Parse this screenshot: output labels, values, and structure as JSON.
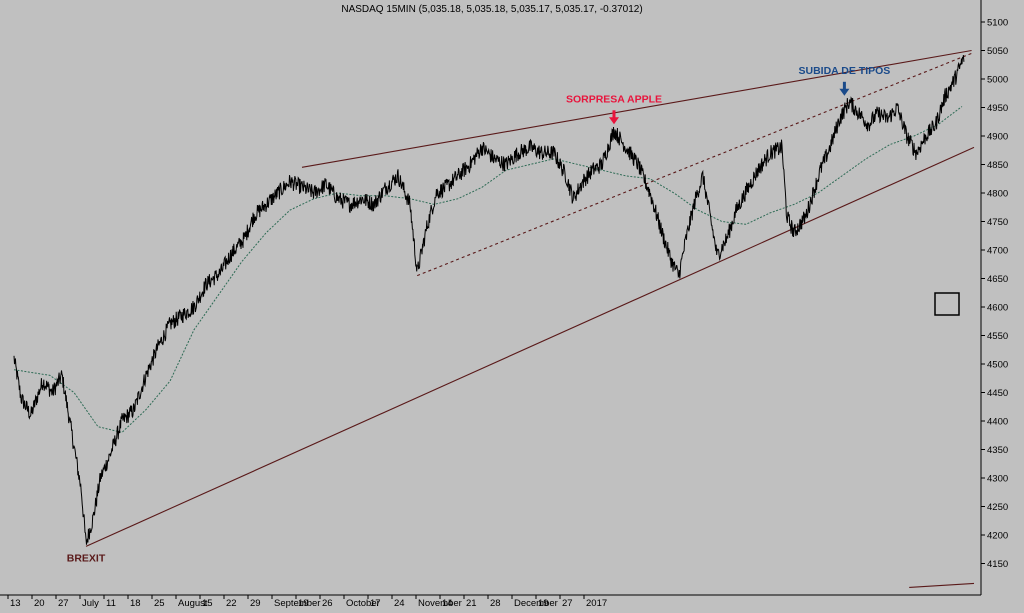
{
  "chart_data": {
    "type": "line",
    "title": "NASDAQ 15MIN (5,035.18, 5,035.18, 5,035.17, 5,035.17, -0.37012)",
    "xlabel": "",
    "ylabel": "",
    "ylim": [
      4100,
      5150
    ],
    "y_ticks": [
      "5100",
      "5050",
      "5000",
      "4950",
      "4900",
      "4850",
      "4800",
      "4750",
      "4700",
      "4650",
      "4600",
      "4550",
      "4500",
      "4450",
      "4400",
      "4350",
      "4300",
      "4250",
      "4200",
      "4150"
    ],
    "x_ticks": [
      "13",
      "20",
      "27",
      "July",
      "11",
      "18",
      "25",
      "August",
      "15",
      "22",
      "29",
      "September",
      "19",
      "26",
      "October",
      "17",
      "24",
      "November",
      "14",
      "21",
      "28",
      "December",
      "19",
      "27",
      "2017"
    ],
    "grid": false,
    "legend": "none",
    "series": [
      {
        "role": "price",
        "color": "#000000",
        "keypoints": [
          [
            0,
            4510
          ],
          [
            0.3,
            4440
          ],
          [
            0.7,
            4410
          ],
          [
            1.2,
            4470
          ],
          [
            1.6,
            4450
          ],
          [
            2.0,
            4480
          ],
          [
            2.4,
            4380
          ],
          [
            2.8,
            4280
          ],
          [
            3.0,
            4185
          ],
          [
            3.3,
            4230
          ],
          [
            3.6,
            4300
          ],
          [
            4.0,
            4340
          ],
          [
            4.5,
            4400
          ],
          [
            5.0,
            4420
          ],
          [
            5.5,
            4480
          ],
          [
            6.0,
            4530
          ],
          [
            6.5,
            4570
          ],
          [
            7.0,
            4585
          ],
          [
            7.5,
            4600
          ],
          [
            8.0,
            4640
          ],
          [
            8.6,
            4660
          ],
          [
            9.0,
            4690
          ],
          [
            9.6,
            4720
          ],
          [
            10.0,
            4760
          ],
          [
            10.5,
            4780
          ],
          [
            11.0,
            4800
          ],
          [
            11.5,
            4820
          ],
          [
            12.0,
            4810
          ],
          [
            12.5,
            4800
          ],
          [
            13.0,
            4815
          ],
          [
            13.5,
            4790
          ],
          [
            14.0,
            4780
          ],
          [
            14.5,
            4790
          ],
          [
            15.0,
            4780
          ],
          [
            15.5,
            4810
          ],
          [
            16.0,
            4830
          ],
          [
            16.5,
            4780
          ],
          [
            16.8,
            4660
          ],
          [
            17.2,
            4740
          ],
          [
            17.6,
            4800
          ],
          [
            18.0,
            4810
          ],
          [
            18.5,
            4830
          ],
          [
            19.0,
            4850
          ],
          [
            19.5,
            4880
          ],
          [
            20.0,
            4860
          ],
          [
            20.5,
            4850
          ],
          [
            21.0,
            4870
          ],
          [
            21.5,
            4880
          ],
          [
            22.0,
            4870
          ],
          [
            22.5,
            4870
          ],
          [
            23.0,
            4830
          ],
          [
            23.3,
            4790
          ],
          [
            23.7,
            4820
          ],
          [
            24.1,
            4840
          ],
          [
            24.5,
            4850
          ],
          [
            25.0,
            4910
          ],
          [
            25.5,
            4880
          ],
          [
            26.0,
            4850
          ],
          [
            26.5,
            4800
          ],
          [
            27.0,
            4730
          ],
          [
            27.4,
            4680
          ],
          [
            27.7,
            4655
          ],
          [
            28.0,
            4720
          ],
          [
            28.4,
            4790
          ],
          [
            28.7,
            4830
          ],
          [
            29.0,
            4760
          ],
          [
            29.3,
            4690
          ],
          [
            29.7,
            4720
          ],
          [
            30.1,
            4770
          ],
          [
            30.6,
            4810
          ],
          [
            31.0,
            4840
          ],
          [
            31.5,
            4870
          ],
          [
            32.0,
            4880
          ],
          [
            32.2,
            4760
          ],
          [
            32.5,
            4730
          ],
          [
            33.0,
            4760
          ],
          [
            33.3,
            4800
          ],
          [
            33.6,
            4840
          ],
          [
            34.0,
            4880
          ],
          [
            34.4,
            4930
          ],
          [
            34.8,
            4960
          ],
          [
            35.2,
            4940
          ],
          [
            35.6,
            4920
          ],
          [
            36.0,
            4940
          ],
          [
            36.4,
            4930
          ],
          [
            36.8,
            4950
          ],
          [
            37.2,
            4900
          ],
          [
            37.6,
            4870
          ],
          [
            38.0,
            4900
          ],
          [
            38.4,
            4920
          ],
          [
            38.8,
            4970
          ],
          [
            39.2,
            5000
          ],
          [
            39.6,
            5040
          ]
        ]
      },
      {
        "role": "moving-average",
        "color": "#2e6b55",
        "keypoints": [
          [
            0,
            4490
          ],
          [
            1.5,
            4480
          ],
          [
            2.5,
            4450
          ],
          [
            3.5,
            4390
          ],
          [
            4.5,
            4380
          ],
          [
            5.5,
            4420
          ],
          [
            6.5,
            4470
          ],
          [
            7.5,
            4560
          ],
          [
            8.5,
            4620
          ],
          [
            9.5,
            4680
          ],
          [
            10.5,
            4730
          ],
          [
            11.5,
            4770
          ],
          [
            12.5,
            4790
          ],
          [
            13.5,
            4800
          ],
          [
            14.5,
            4795
          ],
          [
            15.5,
            4795
          ],
          [
            16.5,
            4790
          ],
          [
            17.5,
            4780
          ],
          [
            18.5,
            4790
          ],
          [
            19.5,
            4810
          ],
          [
            20.5,
            4840
          ],
          [
            21.5,
            4850
          ],
          [
            22.5,
            4860
          ],
          [
            23.5,
            4850
          ],
          [
            24.5,
            4840
          ],
          [
            25.5,
            4830
          ],
          [
            26.5,
            4825
          ],
          [
            27.5,
            4800
          ],
          [
            28.5,
            4770
          ],
          [
            29.5,
            4750
          ],
          [
            30.5,
            4745
          ],
          [
            31.5,
            4765
          ],
          [
            32.5,
            4780
          ],
          [
            33.5,
            4800
          ],
          [
            34.5,
            4830
          ],
          [
            35.5,
            4860
          ],
          [
            36.5,
            4885
          ],
          [
            37.5,
            4900
          ],
          [
            38.5,
            4920
          ],
          [
            39.6,
            4955
          ]
        ]
      }
    ],
    "trendlines": [
      {
        "name": "upper-resistance",
        "color": "#5a1a1a",
        "style": "solid",
        "from": [
          12.0,
          4845
        ],
        "to": [
          39.9,
          5050
        ]
      },
      {
        "name": "lower-support",
        "color": "#5a1a1a",
        "style": "solid",
        "from": [
          3.0,
          4180
        ],
        "to": [
          40.0,
          4880
        ]
      },
      {
        "name": "mid-channel",
        "color": "#5a1a1a",
        "style": "dashed",
        "from": [
          16.8,
          4655
        ],
        "to": [
          39.9,
          5045
        ]
      },
      {
        "name": "bottom-edge",
        "color": "#5a1a1a",
        "style": "solid",
        "from": [
          37.3,
          4108
        ],
        "to": [
          40.0,
          4115
        ]
      }
    ],
    "annotations": [
      {
        "text": "BREXIT",
        "color": "#5a1a1a",
        "at": [
          3.0,
          4185
        ]
      },
      {
        "text": "SORPRESA APPLE",
        "color": "#e8143c",
        "at": [
          25.0,
          4910
        ],
        "arrow": "down"
      },
      {
        "text": "SUBIDA DE TIPOS",
        "color": "#1a4a8a",
        "at": [
          34.6,
          4960
        ],
        "arrow": "down"
      }
    ]
  },
  "tools": {
    "box_icon": "square-outline-icon"
  },
  "colors": {
    "background": "#c0c0c0",
    "axis": "#000000"
  }
}
